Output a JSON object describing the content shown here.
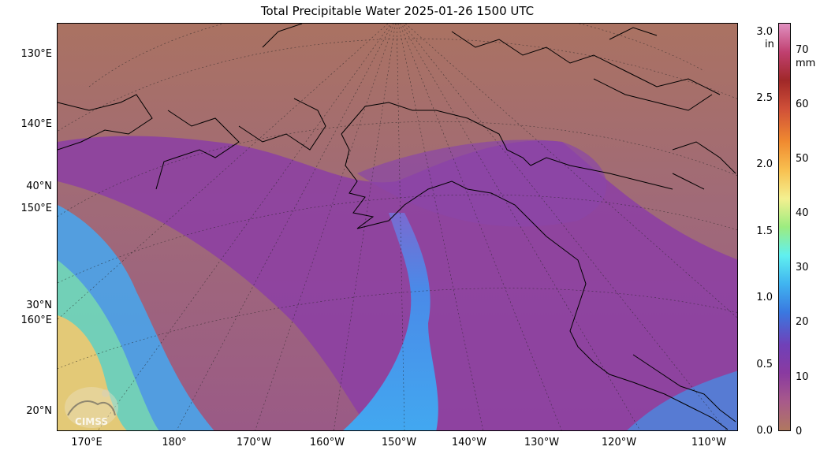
{
  "title": "Total Precipitable Water  2025-01-26 1500 UTC",
  "lat_labels": [
    "130°E",
    "140°E",
    "40°N",
    "150°E",
    "30°N",
    "160°E",
    "20°N"
  ],
  "lon_labels": [
    "170°E",
    "180°",
    "170°W",
    "160°W",
    "150°W",
    "140°W",
    "130°W",
    "120°W",
    "110°W"
  ],
  "colorbar": {
    "unit_in": "in",
    "unit_mm": "mm",
    "ticks_in": [
      "3.0",
      "2.5",
      "2.0",
      "1.5",
      "1.0",
      "0.5",
      "0.0"
    ],
    "ticks_mm": [
      "70",
      "60",
      "50",
      "40",
      "30",
      "20",
      "10",
      "0"
    ],
    "range_in": [
      0.0,
      3.1
    ],
    "range_mm": [
      0,
      78.74
    ],
    "colors": [
      "#b07860",
      "#a85a8a",
      "#8a3aa0",
      "#7040b8",
      "#3a78e0",
      "#40b4f0",
      "#60f0f0",
      "#9cec80",
      "#f4f090",
      "#f8c050",
      "#f08a30",
      "#d05038",
      "#a02828",
      "#c04070",
      "#e090c0"
    ]
  },
  "logo_text": "CIMSS",
  "colors": {
    "land_dry": "#a87262",
    "moist_purple": "#8c3ea4",
    "river_blue": "#3f9cec",
    "tropical_yellow": "#f0c870"
  }
}
